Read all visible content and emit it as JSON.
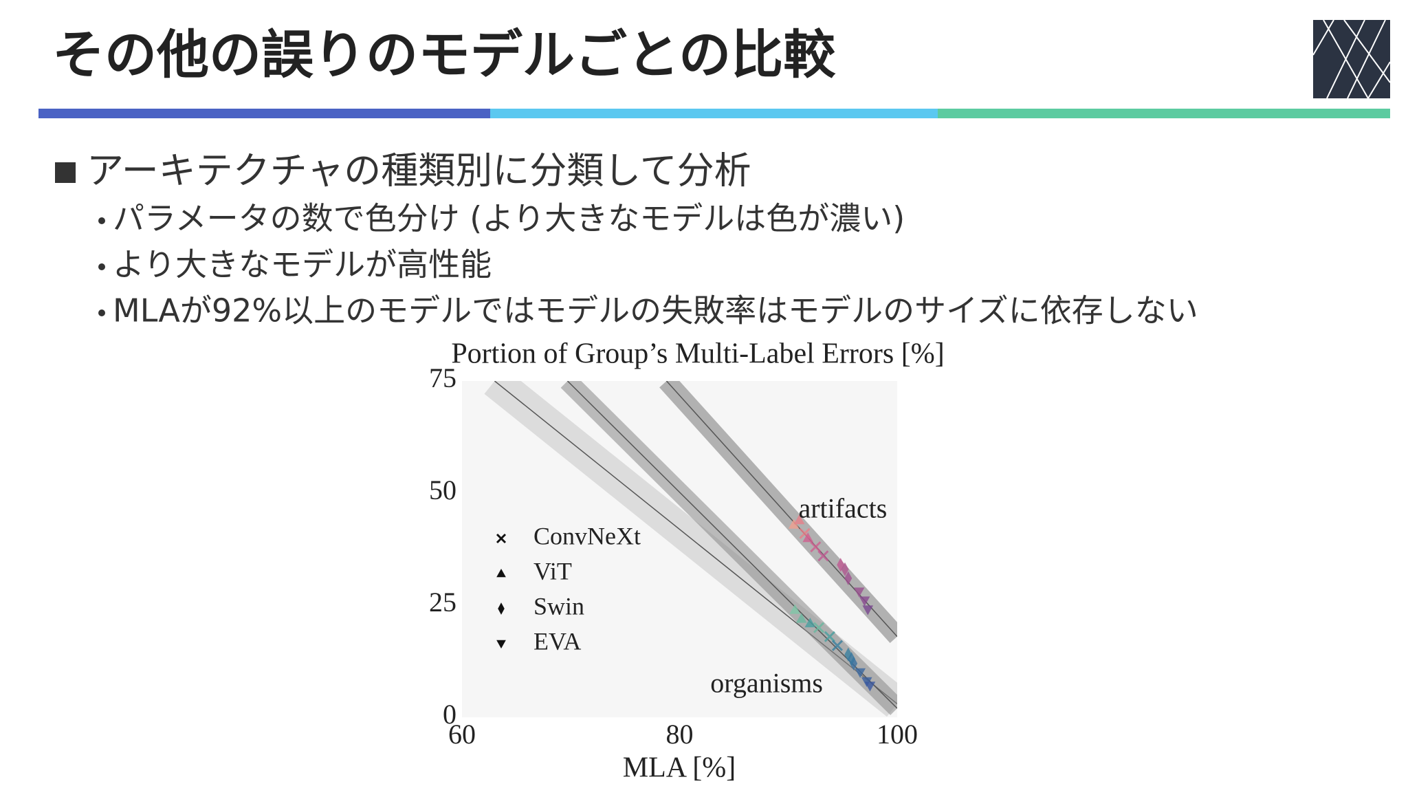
{
  "title": "その他の誤りのモデルごとの比較",
  "bullets": {
    "main": "アーキテクチャの種類別に分類して分析",
    "sub": [
      "パラメータの数で色分け (より大きなモデルは色が濃い)",
      "より大きなモデルが高性能",
      "MLAが92%以上のモデルではモデルの失敗率はモデルのサイズに依存しない"
    ]
  },
  "chart_data": {
    "type": "scatter",
    "title": "Portion of Group’s Multi-Label Errors [%]",
    "x_label": "MLA [%]",
    "xlim": [
      60,
      100
    ],
    "ylim": [
      0,
      75
    ],
    "xticks": [
      60,
      80,
      100
    ],
    "yticks": [
      0,
      25,
      50,
      75
    ],
    "annotations": [
      {
        "text": "artifacts",
        "x": 95,
        "y": 46
      },
      {
        "text": "organisms",
        "x": 88,
        "y": 7
      }
    ],
    "lines": [
      {
        "x": [
          63,
          100
        ],
        "y": [
          75,
          3
        ],
        "color": "#c8c8c8"
      },
      {
        "x": [
          69.7,
          100
        ],
        "y": [
          75,
          2
        ],
        "color": "#8a8a8a"
      },
      {
        "x": [
          78.8,
          100
        ],
        "y": [
          75,
          18
        ],
        "color": "#7a7a7a"
      }
    ],
    "series": [
      {
        "name": "ConvNeXt",
        "marker": "x",
        "x": [
          91.5,
          92.5,
          93.2,
          92.8,
          93.8,
          94.5
        ],
        "y": [
          41,
          38,
          36,
          20,
          18,
          16
        ],
        "colors": [
          "#e8808a",
          "#d06090",
          "#c05a92",
          "#6ab8a0",
          "#4aa0a0",
          "#3a80a0"
        ]
      },
      {
        "name": "ViT",
        "marker": "triangle-up",
        "x": [
          90.5,
          91,
          91.8,
          90.6,
          91.2,
          92
        ],
        "y": [
          43,
          44,
          40,
          24,
          22,
          21
        ],
        "colors": [
          "#f0a090",
          "#e8808a",
          "#d06090",
          "#80c8a8",
          "#6ab8a0",
          "#4aa0a0"
        ]
      },
      {
        "name": "Swin",
        "marker": "diamond",
        "x": [
          94.8,
          95.5,
          95.2,
          95.5,
          96,
          95.8
        ],
        "y": [
          34,
          31,
          33,
          14,
          12,
          13
        ],
        "colors": [
          "#c05a92",
          "#a05090",
          "#b05890",
          "#3a80a0",
          "#3a70a0",
          "#3a78a0"
        ]
      },
      {
        "name": "EVA",
        "marker": "triangle-down",
        "x": [
          96.5,
          97,
          97.3,
          96.6,
          97.2,
          97.5
        ],
        "y": [
          28,
          26,
          24,
          10,
          8,
          7
        ],
        "colors": [
          "#9a5090",
          "#8a4a90",
          "#7a4890",
          "#3a68a0",
          "#3a60a0",
          "#3a58a0"
        ]
      }
    ]
  }
}
